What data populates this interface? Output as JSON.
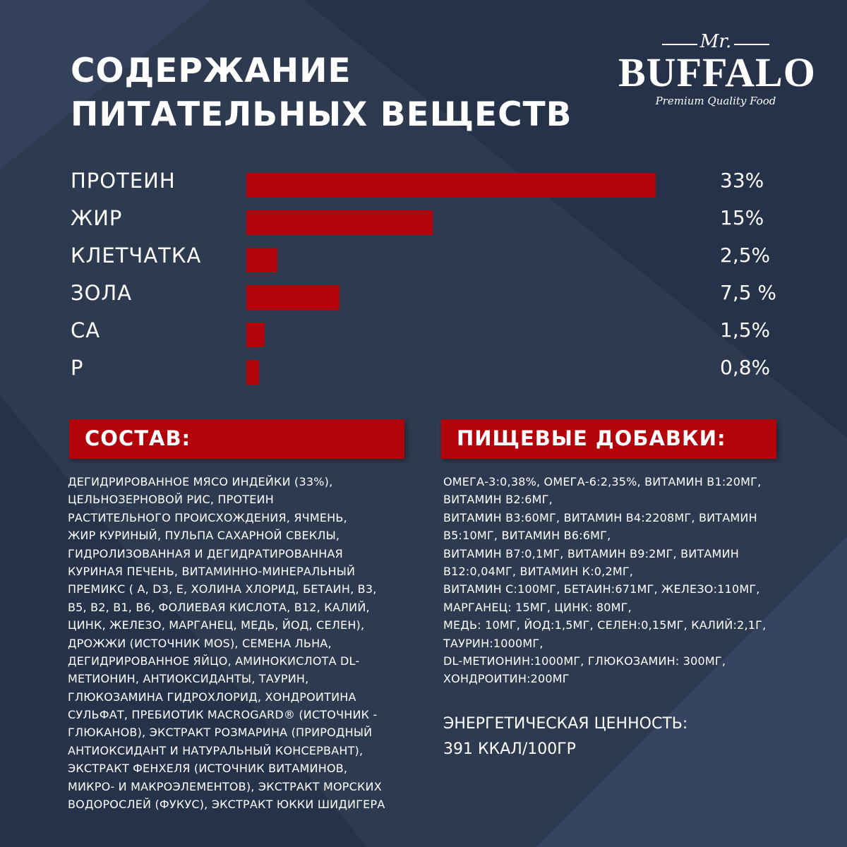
{
  "colors": {
    "background": "#2e3a4f",
    "accent": "#b3040c",
    "text": "#ffffff"
  },
  "title": {
    "line1": "СОДЕРЖАНИЕ",
    "line2": "ПИТАТЕЛЬНЫХ ВЕЩЕСТВ"
  },
  "logo": {
    "script": "Mr.",
    "name": "BUFFALO",
    "tagline": "Premium Quality Food"
  },
  "chart_data": {
    "type": "bar",
    "orientation": "horizontal",
    "categories": [
      "ПРОТЕИН",
      "ЖИР",
      "КЛЕТЧАТКА",
      "ЗОЛА",
      "СА",
      "Р"
    ],
    "values": [
      33,
      15,
      2.5,
      7.5,
      1.5,
      0.8
    ],
    "value_labels": [
      "33%",
      "15%",
      "2,5%",
      "7,5 %",
      "1,5%",
      "0,8%"
    ],
    "unit": "%",
    "grid": false
  },
  "composition": {
    "header": "СОСТАВ:",
    "lines": [
      "ДЕГИДРИРОВАННОЕ МЯСО ИНДЕЙКИ (33%),",
      "ЦЕЛЬНОЗЕРНОВОЙ РИС, ПРОТЕИН",
      "РАСТИТЕЛЬНОГО ПРОИСХОЖДЕНИЯ, ЯЧМЕНЬ,",
      "ЖИР КУРИНЫЙ, ПУЛЬПА САХАРНОЙ СВЕКЛЫ,",
      "ГИДРОЛИЗОВАННАЯ И ДЕГИДРАТИРОВАННАЯ",
      "КУРИНАЯ ПЕЧЕНЬ, ВИТАМИННО-МИНЕРАЛЬНЫЙ",
      "ПРЕМИКС ( А, D3, Е, ХОЛИНА ХЛОРИД, БЕТАИН, В3,",
      "В5, В2, В1, В6, ФОЛИЕВАЯ КИСЛОТА, В12, КАЛИЙ,",
      "ЦИНК, ЖЕЛЕЗО, МАРГАНЕЦ, МЕДЬ, ЙОД, СЕЛЕН),",
      "ДРОЖЖИ (ИСТОЧНИК MOS), СЕМЕНА ЛЬНА,",
      "ДЕГИДРИРОВАННОЕ ЯЙЦО, АМИНОКИСЛОТА DL-",
      "МЕТИОНИН, АНТИОКСИДАНТЫ, ТАУРИН,",
      "ГЛЮКОЗАМИНА ГИДРОХЛОРИД, ХОНДРОИТИНА",
      "СУЛЬФАТ, ПРЕБИОТИК MACROGARD® (ИСТОЧНИК -",
      "ГЛЮКАНОВ), ЭКСТРАКТ РОЗМАРИНА (ПРИРОДНЫЙ",
      "АНТИОКСИДАНТ И НАТУРАЛЬНЫЙ КОНСЕРВАНТ),",
      "ЭКСТРАКТ ФЕНХЕЛЯ (ИСТОЧНИК ВИТАМИНОВ,",
      "МИКРО- И МАКРОЭЛЕМЕНТОВ), ЭКСТРАКТ МОРСКИХ",
      "ВОДОРОСЛЕЙ (ФУКУС), ЭКСТРАКТ ЮККИ ШИДИГЕРА"
    ]
  },
  "additives": {
    "header": "ПИЩЕВЫЕ ДОБАВКИ:",
    "lines": [
      "ОМЕГА-3:0,38%, ОМЕГА-6:2,35%, ВИТАМИН B1:20МГ,",
      "ВИТАМИН B2:6МГ,",
      "ВИТАМИН B3:60МГ, ВИТАМИН B4:2208МГ, ВИТАМИН",
      "B5:10МГ, ВИТАМИН B6:6МГ,",
      "ВИТАМИН B7:0,1МГ, ВИТАМИН B9:2МГ, ВИТАМИН",
      "B12:0,04МГ, ВИТАМИН К:0,2МГ,",
      "ВИТАМИН С:100МГ, БЕТАИН:671МГ, ЖЕЛЕЗО:110МГ,",
      "МАРГАНЕЦ: 15МГ, ЦИНК: 80МГ,",
      "МЕДЬ: 10МГ, ЙОД:1,5МГ, СЕЛЕН:0,15МГ, КАЛИЙ:2,1Г,",
      "ТАУРИН:1000МГ,",
      "DL-МЕТИОНИН:1000МГ, ГЛЮКОЗАМИН: 300МГ,",
      "ХОНДРОИТИН:200МГ"
    ]
  },
  "energy": {
    "label": "ЭНЕРГЕТИЧЕСКАЯ ЦЕННОСТЬ:",
    "value": "391 ККАЛ/100ГР"
  }
}
